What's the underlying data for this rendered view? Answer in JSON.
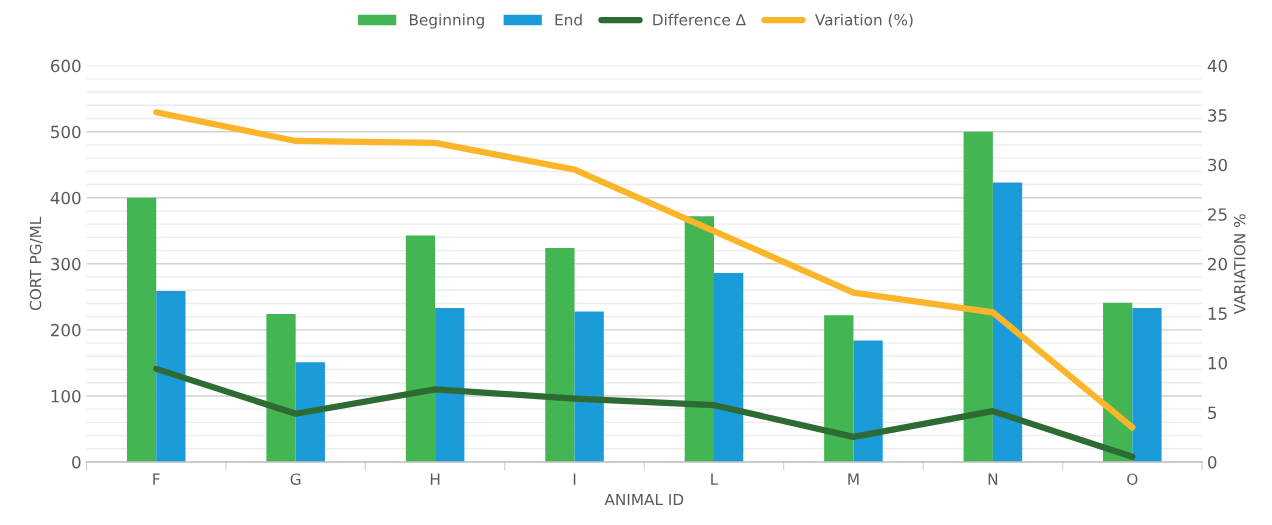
{
  "chart_data": {
    "type": "bar",
    "xlabel": "ANIMAL ID",
    "ylabel": "CORT PG/ML",
    "y2label": "VARIATION %",
    "categories": [
      "F",
      "G",
      "H",
      "I",
      "L",
      "M",
      "N",
      "O"
    ],
    "series": [
      {
        "name": "Beginning",
        "color": "#44b553",
        "values": [
          400,
          224,
          343,
          324,
          372,
          222,
          500,
          241
        ]
      },
      {
        "name": "End",
        "color": "#1b9bd7",
        "values": [
          259,
          151,
          233,
          228,
          286,
          184,
          423,
          233
        ]
      },
      {
        "name": "Difference Δ",
        "type": "line",
        "color": "#2e6b34",
        "values": [
          141,
          73,
          110,
          96,
          86,
          38,
          77,
          8
        ]
      },
      {
        "name": "Variation (%)",
        "type": "line",
        "axis": "y2",
        "color": "#fbb52a",
        "values": [
          35.3,
          32.4,
          32.2,
          29.5,
          23.3,
          17.1,
          15.1,
          3.5
        ]
      }
    ],
    "ylim": [
      0,
      600
    ],
    "yticks": [
      0,
      {
        "value": 20,
        "label": null
      },
      {
        "value": 40,
        "label": null
      },
      {
        "value": 60,
        "label": null
      },
      {
        "value": 80,
        "label": null
      },
      100,
      {
        "value": 120,
        "label": null
      },
      {
        "value": 140,
        "label": null
      },
      {
        "value": 160,
        "label": null
      },
      {
        "value": 180,
        "label": null
      },
      200,
      {
        "value": 220,
        "label": null
      },
      {
        "value": 240,
        "label": null
      },
      {
        "value": 260,
        "label": null
      },
      {
        "value": 280,
        "label": null
      },
      300,
      {
        "value": 320,
        "label": null
      },
      {
        "value": 340,
        "label": null
      },
      {
        "value": 360,
        "label": null
      },
      {
        "value": 380,
        "label": null
      },
      400,
      {
        "value": 420,
        "label": null
      },
      {
        "value": 440,
        "label": null
      },
      {
        "value": 460,
        "label": null
      },
      {
        "value": 480,
        "label": null
      },
      500,
      {
        "value": 520,
        "label": null
      },
      {
        "value": 540,
        "label": null
      },
      {
        "value": 560,
        "label": null
      },
      {
        "value": 580,
        "label": null
      },
      600
    ],
    "y2lim": [
      0,
      40
    ],
    "y2ticks": [
      0,
      5,
      10,
      15,
      20,
      25,
      30,
      35,
      40
    ],
    "grid": "y",
    "legend": "top",
    "line_style": "solid",
    "marker": "none"
  }
}
